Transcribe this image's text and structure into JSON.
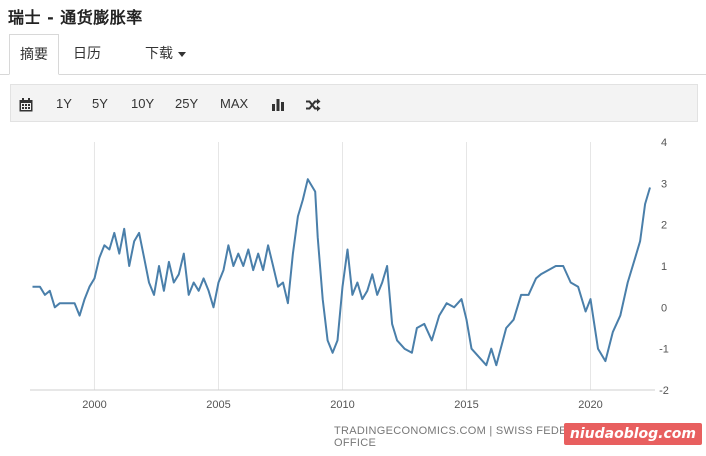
{
  "page_title": "瑞士 - 通货膨胀率",
  "tabs": [
    {
      "label": "摘要",
      "active": true
    },
    {
      "label": "日历",
      "active": false
    },
    {
      "label": "下载",
      "active": false,
      "dropdown": true
    }
  ],
  "toolbar": {
    "calendar_icon": "calendar-icon",
    "ranges": [
      "1Y",
      "5Y",
      "10Y",
      "25Y",
      "MAX"
    ],
    "chart_type_icon": "bar-chart-icon",
    "compare_icon": "shuffle-icon"
  },
  "colors": {
    "line": "#4a7faa",
    "grid": "#e6e6e6",
    "watermark_bg": "#e85f5f"
  },
  "source_text": "TRADINGECONOMICS.COM | SWISS FEDERAL STATISTICAL OFFICE",
  "watermark_text": "niudaoblog.com",
  "chart_data": {
    "type": "line",
    "xlabel": "",
    "ylabel": "",
    "xlim": [
      1997.4,
      2022.6
    ],
    "ylim": [
      -2,
      4
    ],
    "x_ticks": [
      "2000",
      "2005",
      "2010",
      "2015",
      "2020"
    ],
    "x_tick_values": [
      2000,
      2005,
      2010,
      2015,
      2020
    ],
    "y_ticks": [
      "4",
      "3",
      "2",
      "1",
      "0",
      "-1",
      "-2"
    ],
    "y_tick_values": [
      4,
      3,
      2,
      1,
      0,
      -1,
      -2
    ],
    "grid": "vertical",
    "series": [
      {
        "name": "",
        "points": [
          [
            1997.5,
            0.5
          ],
          [
            1997.8,
            0.5
          ],
          [
            1998.0,
            0.3
          ],
          [
            1998.2,
            0.4
          ],
          [
            1998.4,
            0.0
          ],
          [
            1998.6,
            0.1
          ],
          [
            1998.9,
            0.1
          ],
          [
            1999.2,
            0.1
          ],
          [
            1999.4,
            -0.2
          ],
          [
            1999.6,
            0.2
          ],
          [
            1999.8,
            0.5
          ],
          [
            2000.0,
            0.7
          ],
          [
            2000.2,
            1.2
          ],
          [
            2000.4,
            1.5
          ],
          [
            2000.6,
            1.4
          ],
          [
            2000.8,
            1.8
          ],
          [
            2001.0,
            1.3
          ],
          [
            2001.2,
            1.9
          ],
          [
            2001.4,
            1.0
          ],
          [
            2001.6,
            1.6
          ],
          [
            2001.8,
            1.8
          ],
          [
            2002.0,
            1.2
          ],
          [
            2002.2,
            0.6
          ],
          [
            2002.4,
            0.3
          ],
          [
            2002.6,
            1.0
          ],
          [
            2002.8,
            0.4
          ],
          [
            2003.0,
            1.1
          ],
          [
            2003.2,
            0.6
          ],
          [
            2003.4,
            0.8
          ],
          [
            2003.6,
            1.3
          ],
          [
            2003.8,
            0.3
          ],
          [
            2004.0,
            0.6
          ],
          [
            2004.2,
            0.4
          ],
          [
            2004.4,
            0.7
          ],
          [
            2004.6,
            0.4
          ],
          [
            2004.8,
            0.0
          ],
          [
            2005.0,
            0.6
          ],
          [
            2005.2,
            0.9
          ],
          [
            2005.4,
            1.5
          ],
          [
            2005.6,
            1.0
          ],
          [
            2005.8,
            1.3
          ],
          [
            2006.0,
            1.0
          ],
          [
            2006.2,
            1.4
          ],
          [
            2006.4,
            0.9
          ],
          [
            2006.6,
            1.3
          ],
          [
            2006.8,
            0.9
          ],
          [
            2007.0,
            1.5
          ],
          [
            2007.2,
            1.0
          ],
          [
            2007.4,
            0.5
          ],
          [
            2007.6,
            0.6
          ],
          [
            2007.8,
            0.1
          ],
          [
            2008.0,
            1.3
          ],
          [
            2008.2,
            2.2
          ],
          [
            2008.4,
            2.6
          ],
          [
            2008.6,
            3.1
          ],
          [
            2008.9,
            2.8
          ],
          [
            2009.0,
            1.7
          ],
          [
            2009.2,
            0.2
          ],
          [
            2009.4,
            -0.8
          ],
          [
            2009.6,
            -1.1
          ],
          [
            2009.8,
            -0.8
          ],
          [
            2010.0,
            0.5
          ],
          [
            2010.2,
            1.4
          ],
          [
            2010.4,
            0.3
          ],
          [
            2010.6,
            0.6
          ],
          [
            2010.8,
            0.2
          ],
          [
            2011.0,
            0.4
          ],
          [
            2011.2,
            0.8
          ],
          [
            2011.4,
            0.3
          ],
          [
            2011.6,
            0.6
          ],
          [
            2011.8,
            1.0
          ],
          [
            2012.0,
            -0.4
          ],
          [
            2012.2,
            -0.8
          ],
          [
            2012.5,
            -1.0
          ],
          [
            2012.8,
            -1.1
          ],
          [
            2013.0,
            -0.5
          ],
          [
            2013.3,
            -0.4
          ],
          [
            2013.6,
            -0.8
          ],
          [
            2013.9,
            -0.2
          ],
          [
            2014.2,
            0.1
          ],
          [
            2014.5,
            0.0
          ],
          [
            2014.8,
            0.2
          ],
          [
            2015.0,
            -0.3
          ],
          [
            2015.2,
            -1.0
          ],
          [
            2015.5,
            -1.2
          ],
          [
            2015.8,
            -1.4
          ],
          [
            2016.0,
            -1.0
          ],
          [
            2016.2,
            -1.4
          ],
          [
            2016.6,
            -0.5
          ],
          [
            2016.9,
            -0.3
          ],
          [
            2017.2,
            0.3
          ],
          [
            2017.5,
            0.3
          ],
          [
            2017.8,
            0.7
          ],
          [
            2018.0,
            0.8
          ],
          [
            2018.3,
            0.9
          ],
          [
            2018.6,
            1.0
          ],
          [
            2018.9,
            1.0
          ],
          [
            2019.2,
            0.6
          ],
          [
            2019.5,
            0.5
          ],
          [
            2019.8,
            -0.1
          ],
          [
            2020.0,
            0.2
          ],
          [
            2020.3,
            -1.0
          ],
          [
            2020.6,
            -1.3
          ],
          [
            2020.9,
            -0.6
          ],
          [
            2021.2,
            -0.2
          ],
          [
            2021.5,
            0.6
          ],
          [
            2021.8,
            1.2
          ],
          [
            2022.0,
            1.6
          ],
          [
            2022.2,
            2.5
          ],
          [
            2022.4,
            2.9
          ]
        ]
      }
    ]
  }
}
